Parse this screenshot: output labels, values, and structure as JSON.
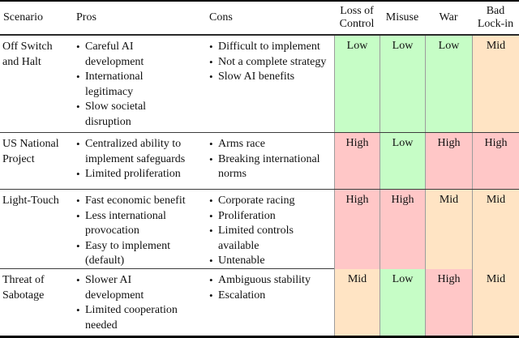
{
  "table": {
    "headers": [
      "Scenario",
      "Pros",
      "Cons",
      "Loss of Control",
      "Misuse",
      "War",
      "Bad Lock-in"
    ],
    "rating_colors": {
      "Low": "#c6fdc6",
      "Mid": "#ffe4c4",
      "High": "#ffc7c7"
    },
    "rows": [
      {
        "scenario": "Off Switch and Halt",
        "pros": [
          "Careful AI development",
          "International legitimacy",
          "Slow societal disruption"
        ],
        "cons": [
          "Difficult to implement",
          "Not a complete strategy",
          "Slow AI benefits"
        ],
        "ratings": [
          "Low",
          "Low",
          "Low",
          "Mid"
        ]
      },
      {
        "scenario": "US National Project",
        "pros": [
          "Centralized ability to implement safeguards",
          "Limited proliferation"
        ],
        "cons": [
          "Arms race",
          "Breaking international norms"
        ],
        "ratings": [
          "High",
          "Low",
          "High",
          "High"
        ]
      },
      {
        "scenario": "Light-Touch",
        "pros": [
          "Fast economic benefit",
          "Less international provocation",
          "Easy to implement (default)"
        ],
        "cons": [
          "Corporate racing",
          "Proliferation",
          "Limited controls available",
          "Untenable"
        ],
        "ratings": [
          "High",
          "High",
          "Mid",
          "Mid"
        ]
      },
      {
        "scenario": "Threat of Sabotage",
        "pros": [
          "Slower AI development",
          "Limited cooperation needed"
        ],
        "cons": [
          "Ambiguous stability",
          "Escalation"
        ],
        "ratings": [
          "Mid",
          "Low",
          "High",
          "Mid"
        ]
      }
    ]
  }
}
